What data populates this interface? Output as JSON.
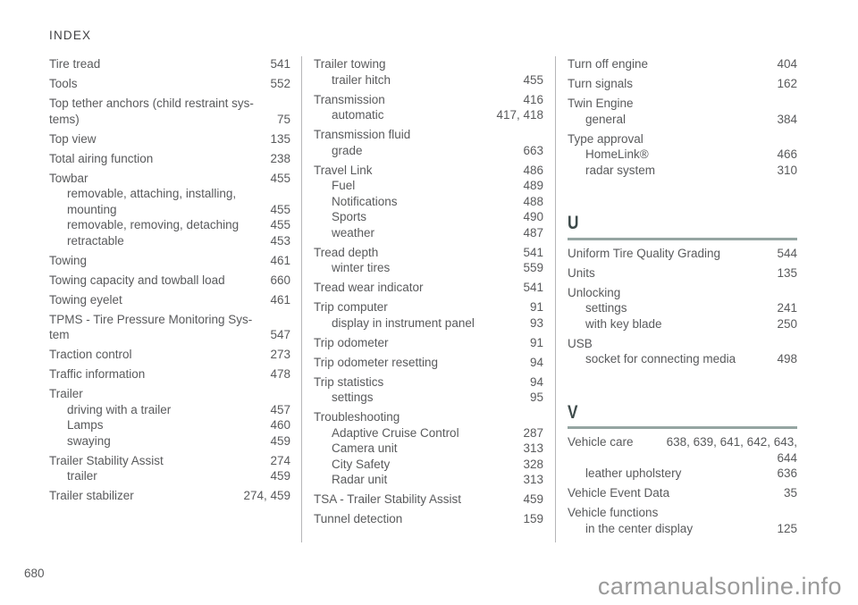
{
  "header": {
    "title": "INDEX"
  },
  "footer": {
    "page_number": "680",
    "watermark": "carmanualsonline.info"
  },
  "colors": {
    "body_text": "#595a5c",
    "section_letter": "#3d4a4a",
    "section_rule": "#95a5a2",
    "column_divider": "#b6b6b8",
    "watermark": "#9a9a9a"
  },
  "columns": [
    {
      "items": [
        {
          "label": "Tire tread",
          "page": "541"
        },
        {
          "label": "Tools",
          "page": "552"
        },
        {
          "label": "Top tether anchors (child restraint sys-\ntems)",
          "page": "75"
        },
        {
          "label": "Top view",
          "page": "135"
        },
        {
          "label": "Total airing function",
          "page": "238"
        },
        {
          "label": "Towbar",
          "page": "455",
          "subs": [
            {
              "label": "removable, attaching, installing,\nmounting",
              "page": "455"
            },
            {
              "label": "removable, removing, detaching",
              "page": "455"
            },
            {
              "label": "retractable",
              "page": "453"
            }
          ]
        },
        {
          "label": "Towing",
          "page": "461"
        },
        {
          "label": "Towing capacity and towball load",
          "page": "660"
        },
        {
          "label": "Towing eyelet",
          "page": "461"
        },
        {
          "label": "TPMS - Tire Pressure Monitoring Sys-\ntem",
          "page": "547"
        },
        {
          "label": "Traction control",
          "page": "273"
        },
        {
          "label": "Traffic information",
          "page": "478"
        },
        {
          "label": "Trailer",
          "subs": [
            {
              "label": "driving with a trailer",
              "page": "457"
            },
            {
              "label": "Lamps",
              "page": "460"
            },
            {
              "label": "swaying",
              "page": "459"
            }
          ]
        },
        {
          "label": "Trailer Stability Assist",
          "page": "274",
          "subs": [
            {
              "label": "trailer",
              "page": "459"
            }
          ]
        },
        {
          "label": "Trailer stabilizer",
          "page": "274, 459"
        }
      ]
    },
    {
      "items": [
        {
          "label": "Trailer towing",
          "subs": [
            {
              "label": "trailer hitch",
              "page": "455"
            }
          ]
        },
        {
          "label": "Transmission",
          "page": "416",
          "subs": [
            {
              "label": "automatic",
              "page": "417, 418"
            }
          ]
        },
        {
          "label": "Transmission fluid",
          "subs": [
            {
              "label": "grade",
              "page": "663"
            }
          ]
        },
        {
          "label": "Travel Link",
          "page": "486",
          "subs": [
            {
              "label": "Fuel",
              "page": "489"
            },
            {
              "label": "Notifications",
              "page": "488"
            },
            {
              "label": "Sports",
              "page": "490"
            },
            {
              "label": "weather",
              "page": "487"
            }
          ]
        },
        {
          "label": "Tread depth",
          "page": "541",
          "subs": [
            {
              "label": "winter tires",
              "page": "559"
            }
          ]
        },
        {
          "label": "Tread wear indicator",
          "page": "541"
        },
        {
          "label": "Trip computer",
          "page": "91",
          "subs": [
            {
              "label": "display in instrument panel",
              "page": "93"
            }
          ]
        },
        {
          "label": "Trip odometer",
          "page": "91"
        },
        {
          "label": "Trip odometer resetting",
          "page": "94"
        },
        {
          "label": "Trip statistics",
          "page": "94",
          "subs": [
            {
              "label": "settings",
              "page": "95"
            }
          ]
        },
        {
          "label": "Troubleshooting",
          "subs": [
            {
              "label": "Adaptive Cruise Control",
              "page": "287"
            },
            {
              "label": "Camera unit",
              "page": "313"
            },
            {
              "label": "City Safety",
              "page": "328"
            },
            {
              "label": "Radar unit",
              "page": "313"
            }
          ]
        },
        {
          "label": "TSA - Trailer Stability Assist",
          "page": "459"
        },
        {
          "label": "Tunnel detection",
          "page": "159"
        }
      ]
    },
    {
      "items": [
        {
          "label": "Turn off engine",
          "page": "404"
        },
        {
          "label": "Turn signals",
          "page": "162"
        },
        {
          "label": "Twin Engine",
          "subs": [
            {
              "label": "general",
              "page": "384"
            }
          ]
        },
        {
          "label": "Type approval",
          "subs": [
            {
              "label": "HomeLink®",
              "page": "466"
            },
            {
              "label": "radar system",
              "page": "310"
            }
          ]
        },
        {
          "section": "U"
        },
        {
          "label": "Uniform Tire Quality Grading",
          "page": "544"
        },
        {
          "label": "Units",
          "page": "135"
        },
        {
          "label": "Unlocking",
          "subs": [
            {
              "label": "settings",
              "page": "241"
            },
            {
              "label": "with key blade",
              "page": "250"
            }
          ]
        },
        {
          "label": "USB",
          "subs": [
            {
              "label": "socket for connecting media",
              "page": "498"
            }
          ]
        },
        {
          "section": "V"
        },
        {
          "label": "Vehicle care",
          "page": "638, 639, 641, 642, 643,\n644",
          "page_top": true,
          "subs": [
            {
              "label": "leather upholstery",
              "page": "636"
            }
          ]
        },
        {
          "label": "Vehicle Event Data",
          "page": "35"
        },
        {
          "label": "Vehicle functions",
          "subs": [
            {
              "label": "in the center display",
              "page": "125"
            }
          ]
        }
      ]
    }
  ]
}
